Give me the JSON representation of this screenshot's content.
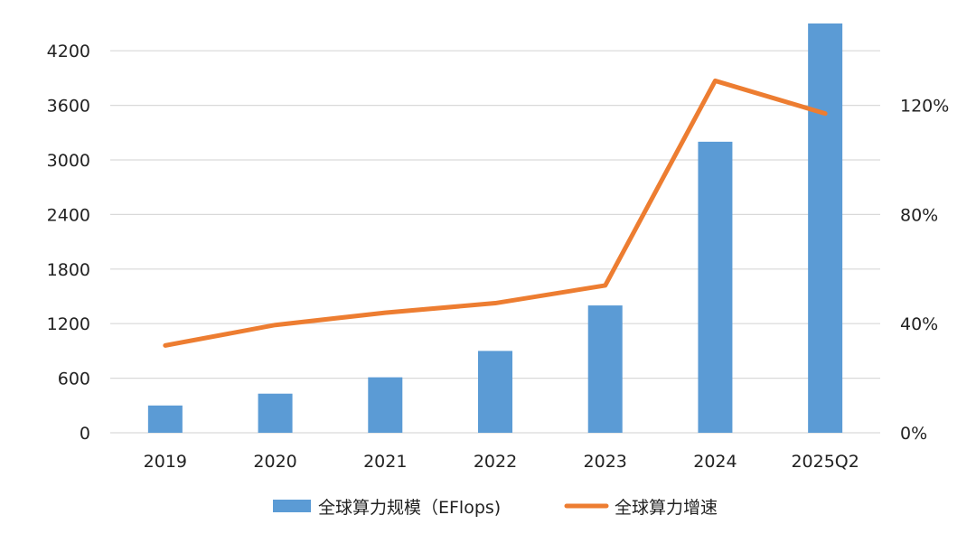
{
  "chart_data": {
    "type": "bar",
    "categories": [
      "2019",
      "2020",
      "2021",
      "2022",
      "2023",
      "2024",
      "2025Q2"
    ],
    "series": [
      {
        "name": "全球算力规模（EFlops)",
        "type": "bar",
        "axis": "left",
        "values": [
          300,
          430,
          610,
          900,
          1400,
          3200,
          4500
        ],
        "color": "#5b9bd5"
      },
      {
        "name": "全球算力增速",
        "type": "line",
        "axis": "right",
        "values": [
          32,
          39.5,
          44,
          47.5,
          54,
          129,
          117
        ],
        "color": "#ed7d31"
      }
    ],
    "y_left": {
      "ylim": [
        0,
        4500
      ],
      "ticks": [
        0,
        600,
        1200,
        1800,
        2400,
        3000,
        3600,
        4200
      ],
      "tick_labels": [
        "0",
        "600",
        "1200",
        "1800",
        "2400",
        "3000",
        "3600",
        "4200"
      ]
    },
    "y_right": {
      "ylim": [
        0,
        150
      ],
      "ticks": [
        0,
        40,
        80,
        120
      ],
      "tick_labels": [
        "0%",
        "40%",
        "80%",
        "120%"
      ]
    },
    "grid": true,
    "legend_position": "bottom"
  }
}
